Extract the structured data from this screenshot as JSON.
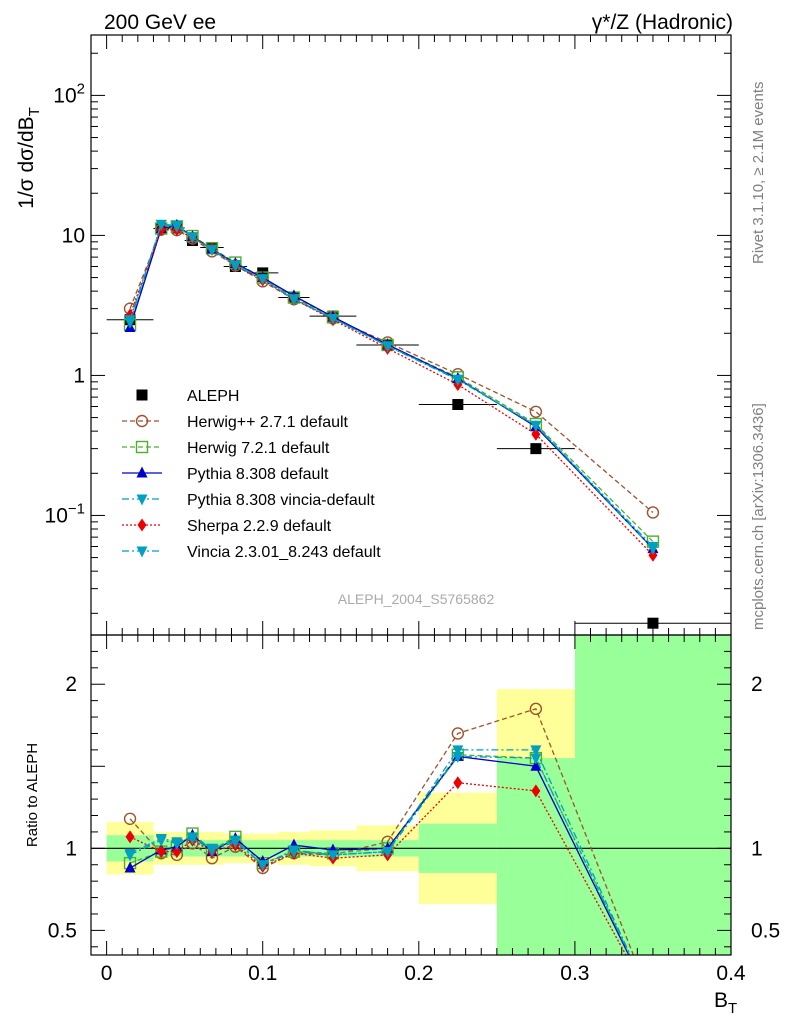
{
  "header": {
    "left": "200 GeV ee",
    "right": "γ*/Z (Hadronic)"
  },
  "side_labels": {
    "rivet": "Rivet 3.1.10, ≥ 2.1M events",
    "mcplots": "mcplots.cern.ch [arXiv:1306.3436]"
  },
  "analysis_id": "ALEPH_2004_S5765862",
  "chart_data": [
    {
      "type": "line",
      "role": "main",
      "ylabel_parts": {
        "pre": "1/σ  dσ/dB",
        "sub": "T"
      },
      "yscale": "log",
      "ylim": [
        0.014,
        270
      ],
      "xlim": [
        -0.01,
        0.4
      ],
      "y_ticks": [
        {
          "v": 100,
          "base": "10",
          "exp": "2"
        },
        {
          "v": 10,
          "base": "10",
          "exp": ""
        },
        {
          "v": 1,
          "base": "1",
          "exp": ""
        },
        {
          "v": 0.1,
          "base": "10",
          "exp": "−1"
        }
      ],
      "legend_position": "left-middle",
      "series": [
        {
          "name": "ALEPH",
          "color": "#000000",
          "marker": "square-filled",
          "line": "none",
          "x": [
            0.015,
            0.035,
            0.045,
            0.055,
            0.0675,
            0.0825,
            0.1,
            0.12,
            0.145,
            0.18,
            0.225,
            0.275,
            0.35
          ],
          "y": [
            2.5,
            11.2,
            11.3,
            9.2,
            8.2,
            6.0,
            5.4,
            3.6,
            2.65,
            1.65,
            0.62,
            0.3,
            0.017
          ],
          "xerr": [
            0.015,
            0.005,
            0.005,
            0.005,
            0.0075,
            0.0075,
            0.01,
            0.01,
            0.015,
            0.02,
            0.025,
            0.025,
            0.05
          ]
        },
        {
          "name": "Herwig++ 2.7.1 default",
          "color": "#a0522d",
          "marker": "circle-open",
          "line": "dashed",
          "x": [
            0.015,
            0.035,
            0.045,
            0.055,
            0.0675,
            0.0825,
            0.1,
            0.12,
            0.145,
            0.18,
            0.225,
            0.275,
            0.35
          ],
          "y": [
            3.0,
            11.0,
            10.9,
            9.5,
            7.7,
            6.1,
            4.7,
            3.5,
            2.55,
            1.72,
            1.02,
            0.55,
            0.105
          ]
        },
        {
          "name": "Herwig 7.2.1 default",
          "color": "#4daf2a",
          "marker": "square-open",
          "line": "dashed",
          "x": [
            0.015,
            0.035,
            0.045,
            0.055,
            0.0675,
            0.0825,
            0.1,
            0.12,
            0.145,
            0.18,
            0.225,
            0.275,
            0.35
          ],
          "y": [
            2.3,
            11.2,
            11.6,
            9.9,
            8.1,
            6.4,
            5.0,
            3.6,
            2.6,
            1.65,
            0.97,
            0.45,
            0.065
          ]
        },
        {
          "name": "Pythia 8.308 default",
          "color": "#0000cc",
          "marker": "triangle-up",
          "line": "solid",
          "x": [
            0.015,
            0.035,
            0.045,
            0.055,
            0.0675,
            0.0825,
            0.1,
            0.12,
            0.145,
            0.18,
            0.225,
            0.275,
            0.35
          ],
          "y": [
            2.2,
            11.2,
            11.8,
            9.8,
            8.0,
            6.3,
            5.0,
            3.7,
            2.62,
            1.66,
            0.95,
            0.43,
            0.058
          ]
        },
        {
          "name": "Pythia 8.308 vincia-default",
          "color": "#00a0c0",
          "marker": "triangle-down",
          "line": "dashdot",
          "x": [
            0.015,
            0.035,
            0.045,
            0.055,
            0.0675,
            0.0825,
            0.1,
            0.12,
            0.145,
            0.18,
            0.225,
            0.275,
            0.35
          ],
          "y": [
            2.4,
            12.0,
            11.8,
            9.8,
            8.0,
            6.2,
            4.9,
            3.55,
            2.55,
            1.63,
            0.94,
            0.44,
            0.06
          ]
        },
        {
          "name": "Sherpa 2.2.9 default",
          "color": "#ee0000",
          "marker": "diamond",
          "line": "dotted",
          "x": [
            0.015,
            0.035,
            0.045,
            0.055,
            0.0675,
            0.0825,
            0.1,
            0.12,
            0.145,
            0.18,
            0.225,
            0.275,
            0.35
          ],
          "y": [
            2.7,
            11.0,
            11.0,
            9.6,
            8.0,
            6.1,
            4.8,
            3.5,
            2.5,
            1.56,
            0.86,
            0.38,
            0.052
          ]
        },
        {
          "name": "Vincia 2.3.01_8.243 default",
          "color": "#00a0c0",
          "marker": "triangle-down",
          "line": "dashdot",
          "x": [
            0.015,
            0.035,
            0.045,
            0.055,
            0.0675,
            0.0825,
            0.1,
            0.12,
            0.145,
            0.18,
            0.225,
            0.275,
            0.35
          ],
          "y": [
            2.5,
            12.0,
            11.6,
            9.7,
            7.9,
            6.1,
            4.9,
            3.5,
            2.55,
            1.62,
            0.93,
            0.44,
            0.058
          ]
        }
      ]
    },
    {
      "type": "line",
      "role": "ratio",
      "ylabel": "Ratio to ALEPH",
      "ylim": [
        0.35,
        2.3
      ],
      "xlim": [
        -0.01,
        0.4
      ],
      "xlabel_parts": {
        "pre": "B",
        "sub": "T"
      },
      "x_ticks": [
        {
          "v": 0,
          "label": "0"
        },
        {
          "v": 0.1,
          "label": "0.1"
        },
        {
          "v": 0.2,
          "label": "0.2"
        },
        {
          "v": 0.3,
          "label": "0.3"
        },
        {
          "v": 0.4,
          "label": "0.4"
        }
      ],
      "y_ticks": [
        {
          "v": 0.5,
          "label": "0.5"
        },
        {
          "v": 1,
          "label": "1"
        },
        {
          "v": 2,
          "label": "2"
        }
      ],
      "uncertainty_bands": {
        "x_edges": [
          0,
          0.03,
          0.04,
          0.05,
          0.06,
          0.075,
          0.09,
          0.11,
          0.13,
          0.16,
          0.2,
          0.25,
          0.3,
          0.4
        ],
        "stat": {
          "color": "#99ff99",
          "lo": [
            0.92,
            0.95,
            0.95,
            0.95,
            0.95,
            0.95,
            0.95,
            0.95,
            0.95,
            0.95,
            0.85,
            0.35,
            0.0
          ],
          "hi": [
            1.08,
            1.05,
            1.05,
            1.05,
            1.05,
            1.05,
            1.05,
            1.05,
            1.05,
            1.05,
            1.15,
            1.55,
            2.8
          ]
        },
        "total": {
          "color": "#ffff99",
          "lo": [
            0.84,
            0.9,
            0.9,
            0.9,
            0.9,
            0.91,
            0.91,
            0.9,
            0.89,
            0.86,
            0.66,
            0.3,
            0.0
          ],
          "hi": [
            1.16,
            1.1,
            1.1,
            1.1,
            1.1,
            1.09,
            1.09,
            1.1,
            1.11,
            1.14,
            1.34,
            1.97,
            2.8
          ]
        }
      },
      "series": [
        {
          "name": "Herwig++ 2.7.1 default",
          "color": "#a0522d",
          "marker": "circle-open",
          "line": "dashed",
          "x": [
            0.015,
            0.035,
            0.045,
            0.055,
            0.0675,
            0.0825,
            0.1,
            0.12,
            0.145,
            0.18,
            0.225,
            0.275,
            0.35
          ],
          "y": [
            1.18,
            0.97,
            0.96,
            1.03,
            0.94,
            1.01,
            0.88,
            0.97,
            0.96,
            1.04,
            1.7,
            1.85,
            0.05
          ]
        },
        {
          "name": "Herwig 7.2.1 default",
          "color": "#4daf2a",
          "marker": "square-open",
          "line": "dashed",
          "x": [
            0.015,
            0.035,
            0.045,
            0.055,
            0.0675,
            0.0825,
            0.1,
            0.12,
            0.145,
            0.18,
            0.225,
            0.275,
            0.35
          ],
          "y": [
            0.91,
            0.98,
            1.01,
            1.09,
            0.99,
            1.07,
            0.91,
            0.98,
            0.97,
            1.0,
            1.57,
            1.55,
            0.05
          ]
        },
        {
          "name": "Pythia 8.308 default",
          "color": "#0000cc",
          "marker": "triangle-up",
          "line": "solid",
          "x": [
            0.015,
            0.035,
            0.045,
            0.055,
            0.0675,
            0.0825,
            0.1,
            0.12,
            0.145,
            0.18,
            0.225,
            0.275,
            0.35
          ],
          "y": [
            0.88,
            0.99,
            1.01,
            1.08,
            0.98,
            1.06,
            0.92,
            1.02,
            0.99,
            1.0,
            1.56,
            1.5,
            0.05
          ]
        },
        {
          "name": "Pythia 8.308 vincia-default",
          "color": "#00a0c0",
          "marker": "triangle-down",
          "line": "dashdot",
          "x": [
            0.015,
            0.035,
            0.045,
            0.055,
            0.0675,
            0.0825,
            0.1,
            0.12,
            0.145,
            0.18,
            0.225,
            0.275,
            0.35
          ],
          "y": [
            0.97,
            1.06,
            1.04,
            1.07,
            1.0,
            1.05,
            0.9,
            0.99,
            0.96,
            0.98,
            1.56,
            1.55,
            0.05
          ]
        },
        {
          "name": "Sherpa 2.2.9 default",
          "color": "#ee0000",
          "marker": "diamond",
          "line": "dotted",
          "x": [
            0.015,
            0.035,
            0.045,
            0.055,
            0.0675,
            0.0825,
            0.1,
            0.12,
            0.145,
            0.18,
            0.225,
            0.275,
            0.35
          ],
          "y": [
            1.07,
            0.98,
            0.98,
            1.05,
            0.98,
            1.02,
            0.89,
            0.97,
            0.94,
            0.96,
            1.4,
            1.35,
            0.05
          ]
        },
        {
          "name": "Vincia 2.3.01_8.243 default",
          "color": "#00a0c0",
          "marker": "triangle-down",
          "line": "dashdot",
          "x": [
            0.015,
            0.035,
            0.045,
            0.055,
            0.0675,
            0.0825,
            0.1,
            0.12,
            0.145,
            0.18,
            0.225,
            0.275,
            0.35
          ],
          "y": [
            0.96,
            1.05,
            1.03,
            1.06,
            0.99,
            1.04,
            0.9,
            0.98,
            0.96,
            0.98,
            1.6,
            1.6,
            0.05
          ]
        }
      ]
    }
  ]
}
